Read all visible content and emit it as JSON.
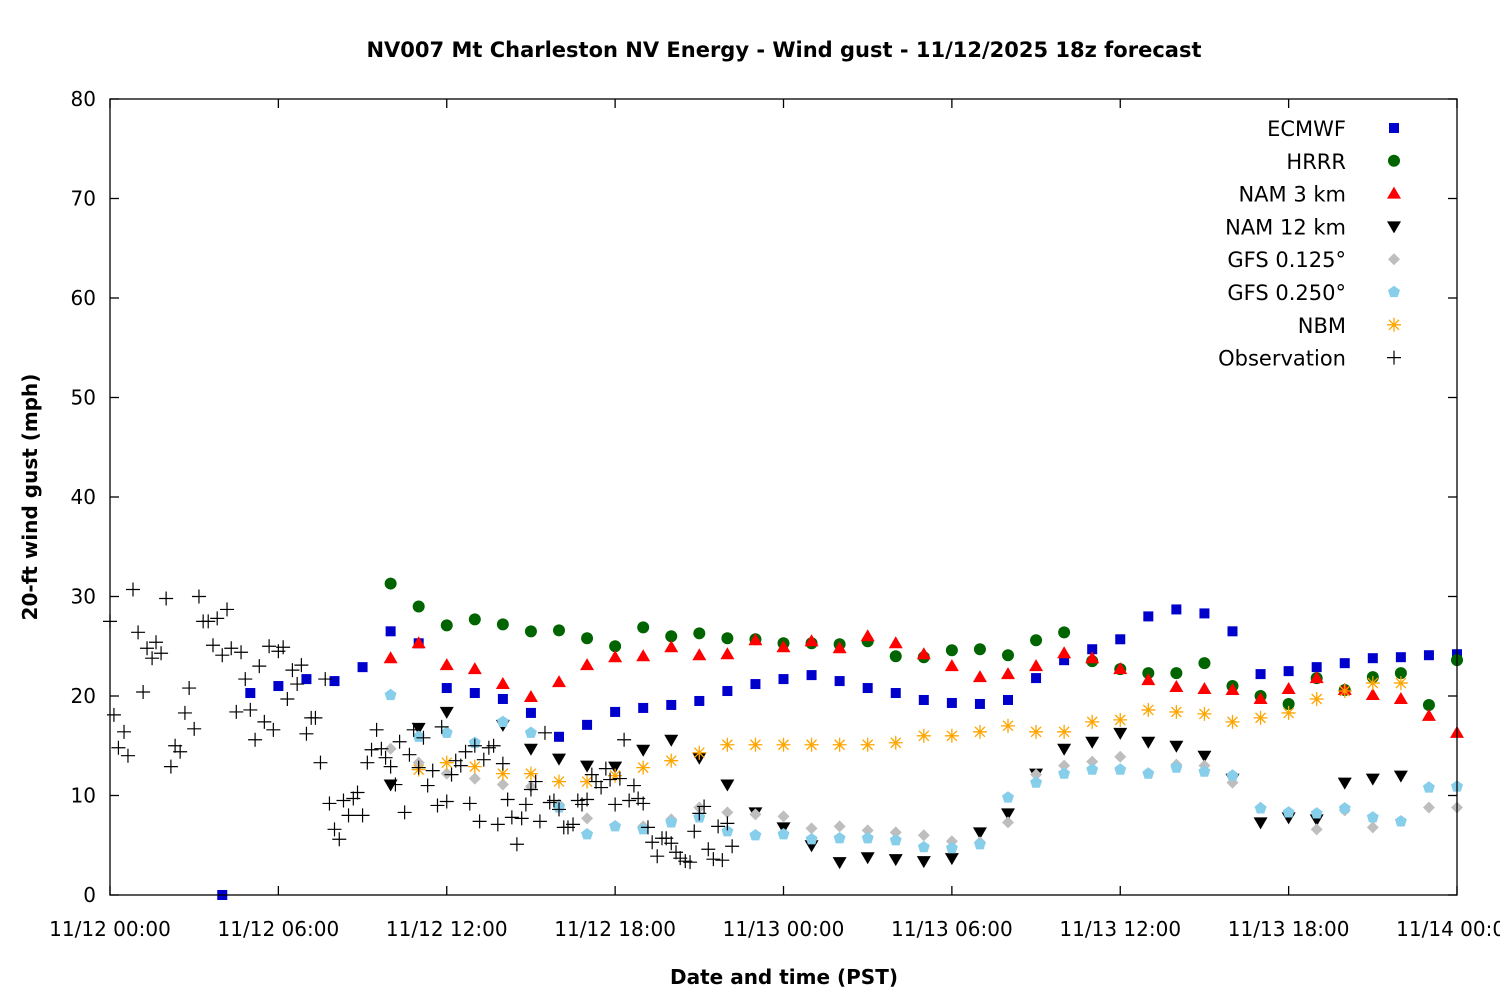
{
  "chart_data": {
    "type": "scatter",
    "title": "NV007 Mt Charleston NV Energy - Wind gust - 11/12/2025 18z forecast",
    "xlabel": "Date and time (PST)",
    "ylabel": "20-ft wind gust (mph)",
    "x_unit": "hours since 11/12 00:00 PST",
    "xlim": [
      0,
      48
    ],
    "ylim": [
      0,
      80
    ],
    "grid": false,
    "legend_position": "top-right",
    "x_ticks": [
      {
        "value": 0,
        "label": "11/12 00:00"
      },
      {
        "value": 6,
        "label": "11/12 06:00"
      },
      {
        "value": 12,
        "label": "11/12 12:00"
      },
      {
        "value": 18,
        "label": "11/12 18:00"
      },
      {
        "value": 24,
        "label": "11/13 00:00"
      },
      {
        "value": 30,
        "label": "11/13 06:00"
      },
      {
        "value": 36,
        "label": "11/13 12:00"
      },
      {
        "value": 42,
        "label": "11/13 18:00"
      },
      {
        "value": 48,
        "label": "11/14 00:00"
      }
    ],
    "y_ticks": [
      {
        "value": 0,
        "label": "0"
      },
      {
        "value": 10,
        "label": "10"
      },
      {
        "value": 20,
        "label": "20"
      },
      {
        "value": 30,
        "label": "30"
      },
      {
        "value": 40,
        "label": "40"
      },
      {
        "value": 50,
        "label": "50"
      },
      {
        "value": 60,
        "label": "60"
      },
      {
        "value": 70,
        "label": "70"
      },
      {
        "value": 80,
        "label": "80"
      }
    ],
    "series": [
      {
        "name": "ECMWF",
        "marker": "square",
        "color": "#0000cc",
        "x": [
          4,
          5,
          6,
          7,
          8,
          9,
          10,
          11,
          12,
          13,
          14,
          15,
          16,
          17,
          18,
          19,
          20,
          21,
          22,
          23,
          24,
          25,
          26,
          27,
          28,
          29,
          30,
          31,
          32,
          33,
          34,
          35,
          36,
          37,
          38,
          39,
          40,
          41,
          42,
          43,
          44,
          45,
          46,
          47,
          48
        ],
        "y": [
          0,
          20.3,
          21.0,
          21.7,
          21.5,
          22.9,
          26.5,
          25.3,
          20.8,
          20.3,
          19.7,
          18.3,
          15.9,
          17.1,
          18.4,
          18.8,
          19.1,
          19.5,
          20.5,
          21.2,
          21.7,
          22.1,
          21.5,
          20.8,
          20.3,
          19.6,
          19.3,
          19.2,
          19.6,
          21.8,
          23.6,
          24.7,
          25.7,
          28.0,
          28.7,
          28.3,
          26.5,
          22.2,
          22.5,
          22.9,
          23.3,
          23.8,
          23.9,
          24.1,
          24.2
        ]
      },
      {
        "name": "HRRR",
        "marker": "circle",
        "color": "#006400",
        "x": [
          10,
          11,
          12,
          13,
          14,
          15,
          16,
          17,
          18,
          19,
          20,
          21,
          22,
          23,
          24,
          25,
          26,
          27,
          28,
          29,
          30,
          31,
          32,
          33,
          34,
          35,
          36,
          37,
          38,
          39,
          40,
          41,
          42,
          43,
          44,
          45,
          46,
          47,
          48
        ],
        "y": [
          31.3,
          29.0,
          27.1,
          27.7,
          27.2,
          26.5,
          26.6,
          25.8,
          25.0,
          26.9,
          26.0,
          26.3,
          25.8,
          25.7,
          25.3,
          25.3,
          25.2,
          25.5,
          24.0,
          23.9,
          24.6,
          24.7,
          24.1,
          25.6,
          26.4,
          23.5,
          22.7,
          22.3,
          22.3,
          23.3,
          21.0,
          20.0,
          19.2,
          21.8,
          20.6,
          21.9,
          22.3,
          19.1,
          23.6
        ]
      },
      {
        "name": "NAM 3 km",
        "marker": "triangle-up",
        "color": "#ff0000",
        "x": [
          10,
          11,
          12,
          13,
          14,
          15,
          16,
          17,
          18,
          19,
          20,
          21,
          22,
          23,
          24,
          25,
          26,
          27,
          28,
          29,
          30,
          31,
          32,
          33,
          34,
          35,
          36,
          37,
          38,
          39,
          40,
          41,
          42,
          43,
          44,
          45,
          46,
          47,
          48
        ],
        "y": [
          23.8,
          25.3,
          23.1,
          22.7,
          21.2,
          19.9,
          21.4,
          23.1,
          23.9,
          24.0,
          24.9,
          24.1,
          24.2,
          25.6,
          24.9,
          25.5,
          24.8,
          26.0,
          25.3,
          24.2,
          23.0,
          21.9,
          22.2,
          23.0,
          24.3,
          23.8,
          22.7,
          21.6,
          20.9,
          20.7,
          20.6,
          19.7,
          20.7,
          21.8,
          20.6,
          20.1,
          19.7,
          18.0,
          16.3
        ]
      },
      {
        "name": "NAM 12 km",
        "marker": "triangle-down",
        "color": "#000000",
        "x": [
          10,
          11,
          12,
          14,
          15,
          16,
          17,
          18,
          19,
          20,
          21,
          22,
          23,
          24,
          25,
          26,
          27,
          28,
          29,
          30,
          31,
          32,
          33,
          34,
          35,
          36,
          37,
          38,
          39,
          40,
          41,
          42,
          43,
          44,
          45,
          46
        ],
        "y": [
          11.1,
          16.8,
          18.4,
          17.1,
          14.7,
          13.7,
          13.0,
          12.9,
          14.6,
          15.6,
          13.8,
          11.1,
          8.3,
          6.8,
          5.0,
          3.3,
          3.8,
          3.6,
          3.4,
          3.7,
          6.3,
          8.2,
          12.2,
          14.7,
          15.4,
          16.3,
          15.4,
          15.0,
          14.0,
          11.7,
          7.3,
          7.8,
          7.6,
          11.3,
          11.7,
          12.0
        ]
      },
      {
        "name": "GFS 0.125°",
        "marker": "diamond",
        "color": "#bebebe",
        "x": [
          10,
          11,
          12,
          13,
          14,
          15,
          16,
          17,
          19,
          20,
          21,
          22,
          23,
          24,
          25,
          26,
          27,
          28,
          29,
          30,
          31,
          32,
          33,
          34,
          35,
          36,
          38,
          39,
          40,
          41,
          43,
          44,
          45,
          47,
          48
        ],
        "y": [
          14.7,
          13.3,
          12.2,
          11.7,
          11.1,
          10.9,
          9.1,
          7.7,
          6.9,
          7.6,
          8.8,
          8.3,
          8.1,
          7.9,
          6.7,
          6.9,
          6.5,
          6.3,
          6.0,
          5.4,
          5.3,
          7.3,
          12.1,
          13.0,
          13.4,
          13.9,
          13.1,
          13.0,
          11.3,
          8.8,
          6.6,
          8.5,
          6.8,
          8.8,
          8.8
        ]
      },
      {
        "name": "GFS 0.250°",
        "marker": "pentagon",
        "color": "#87ceeb",
        "x": [
          10,
          11,
          12,
          13,
          14,
          15,
          16,
          17,
          18,
          19,
          20,
          21,
          22,
          23,
          24,
          25,
          26,
          27,
          28,
          29,
          30,
          31,
          32,
          33,
          34,
          35,
          36,
          37,
          38,
          39,
          40,
          41,
          42,
          43,
          44,
          45,
          46,
          47,
          48
        ],
        "y": [
          20.1,
          15.9,
          16.3,
          15.3,
          17.4,
          16.3,
          8.8,
          6.1,
          6.9,
          6.6,
          7.3,
          7.8,
          6.4,
          6.0,
          6.1,
          5.6,
          5.7,
          5.7,
          5.5,
          4.8,
          4.7,
          5.1,
          9.8,
          11.3,
          12.2,
          12.6,
          12.6,
          12.2,
          12.8,
          12.4,
          12.0,
          8.7,
          8.3,
          8.2,
          8.7,
          7.8,
          7.4,
          10.8,
          10.9
        ]
      },
      {
        "name": "NBM",
        "marker": "asterisk",
        "color": "#ffa500",
        "x": [
          11,
          12,
          13,
          14,
          15,
          16,
          17,
          18,
          19,
          20,
          21,
          22,
          23,
          24,
          25,
          26,
          27,
          28,
          29,
          30,
          31,
          32,
          33,
          34,
          35,
          36,
          37,
          38,
          39,
          40,
          41,
          42,
          43,
          44,
          45,
          46
        ],
        "y": [
          12.6,
          13.3,
          12.9,
          12.2,
          12.2,
          11.4,
          11.4,
          12.0,
          12.8,
          13.5,
          14.3,
          15.1,
          15.1,
          15.1,
          15.1,
          15.1,
          15.1,
          15.3,
          16.0,
          16.0,
          16.4,
          17.0,
          16.4,
          16.4,
          17.4,
          17.6,
          18.6,
          18.4,
          18.2,
          17.4,
          17.8,
          18.3,
          19.7,
          20.5,
          21.3,
          21.3
        ]
      },
      {
        "name": "Observation",
        "marker": "plus",
        "color": "#000000",
        "x": [
          0.0,
          0.14,
          0.3,
          0.5,
          0.64,
          0.82,
          1.0,
          1.18,
          1.32,
          1.5,
          1.64,
          1.82,
          2.0,
          2.17,
          2.32,
          2.5,
          2.67,
          2.82,
          3.0,
          3.17,
          3.32,
          3.5,
          3.67,
          3.82,
          4.0,
          4.17,
          4.32,
          4.5,
          4.67,
          4.82,
          5.0,
          5.17,
          5.32,
          5.5,
          5.67,
          5.82,
          6.0,
          6.17,
          6.32,
          6.5,
          6.67,
          6.82,
          7.0,
          7.17,
          7.32,
          7.5,
          7.67,
          7.82,
          8.0,
          8.17,
          8.32,
          8.5,
          8.67,
          8.82,
          9.0,
          9.17,
          9.32,
          9.5,
          9.67,
          9.82,
          10.0,
          10.17,
          10.32,
          10.5,
          10.67,
          10.82,
          11.0,
          11.17,
          11.32,
          11.5,
          11.67,
          11.82,
          12.0,
          12.17,
          12.32,
          12.5,
          12.67,
          12.82,
          13.0,
          13.17,
          13.32,
          13.5,
          13.67,
          13.82,
          14.0,
          14.17,
          14.32,
          14.5,
          14.67,
          14.82,
          15.0,
          15.17,
          15.32,
          15.5,
          15.67,
          15.82,
          16.0,
          16.17,
          16.32,
          16.5,
          16.67,
          16.82,
          17.0,
          17.17,
          17.32,
          17.5,
          17.67,
          17.82,
          18.0,
          18.17,
          18.32,
          18.5,
          18.67,
          18.82,
          19.0,
          19.17,
          19.32,
          19.5,
          19.67,
          19.82,
          20.0,
          20.17,
          20.32,
          20.5,
          20.67,
          20.82,
          21.0,
          21.17,
          21.32,
          21.5,
          21.67,
          21.82,
          22.0,
          22.17
        ],
        "y": [
          27.5,
          18.1,
          14.8,
          16.4,
          14.0,
          30.7,
          26.4,
          20.4,
          24.8,
          23.8,
          25.4,
          24.3,
          29.8,
          12.9,
          15.0,
          14.4,
          18.3,
          20.8,
          16.7,
          30.0,
          27.5,
          27.5,
          25.1,
          27.8,
          24.1,
          28.7,
          24.8,
          18.4,
          24.4,
          21.7,
          18.6,
          15.6,
          23.0,
          17.4,
          25.0,
          16.6,
          24.5,
          24.9,
          19.7,
          22.6,
          21.2,
          23.1,
          16.2,
          17.8,
          17.8,
          13.3,
          21.7,
          9.2,
          6.6,
          5.6,
          9.5,
          8.0,
          9.7,
          10.3,
          8.0,
          13.3,
          14.6,
          16.6,
          14.7,
          13.8,
          12.9,
          11.1,
          15.4,
          8.3,
          14.1,
          16.6,
          12.8,
          15.8,
          11.0,
          12.5,
          9.0,
          16.9,
          9.4,
          12.1,
          13.5,
          13.0,
          14.4,
          9.2,
          15.0,
          7.4,
          13.6,
          14.8,
          15.0,
          7.1,
          13.2,
          9.6,
          7.8,
          5.1,
          7.7,
          9.1,
          10.6,
          11.4,
          7.4,
          16.3,
          9.3,
          9.5,
          8.6,
          6.8,
          6.8,
          7.1,
          9.5,
          9.1,
          9.6,
          12.1,
          11.4,
          10.8,
          12.7,
          11.6,
          9.1,
          11.7,
          15.6,
          9.5,
          11.0,
          9.7,
          9.2,
          6.8,
          5.3,
          3.9,
          5.7,
          5.7,
          5.2,
          4.3,
          3.7,
          3.4,
          3.3,
          6.4,
          8.2,
          8.9,
          4.6,
          3.6,
          6.9,
          3.5,
          7.2,
          4.9
        ]
      }
    ]
  }
}
